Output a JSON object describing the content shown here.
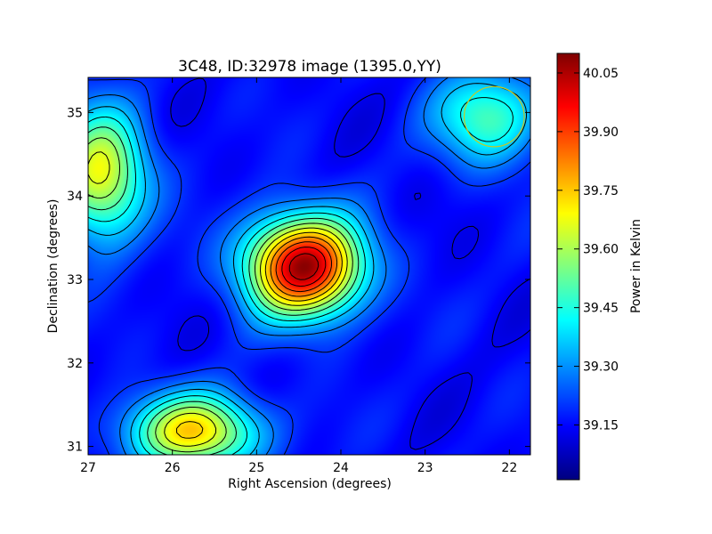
{
  "chart_data": {
    "type": "heatmap",
    "title": "3C48, ID:32978 image (1395.0,YY)",
    "xlabel": "Right Ascension (degrees)",
    "ylabel": "Declination (degrees)",
    "xlim": [
      27.0,
      21.75
    ],
    "ylim": [
      30.9,
      35.42
    ],
    "x_ticks": [
      27,
      26,
      25,
      24,
      23,
      22
    ],
    "y_ticks": [
      31,
      32,
      33,
      34,
      35
    ],
    "colorbar": {
      "label": "Power in Kelvin",
      "range": [
        39.01,
        40.1
      ],
      "ticks": [
        "39.15",
        "39.30",
        "39.45",
        "39.60",
        "39.75",
        "39.90",
        "40.05"
      ],
      "colormap": "jet"
    },
    "sources": [
      {
        "ra": 24.44,
        "dec": 33.16,
        "peak": 40.07,
        "sigma_ra": 0.48,
        "sigma_dec": 0.42
      },
      {
        "ra": 26.85,
        "dec": 34.25,
        "peak": 39.68,
        "sigma_ra": 0.38,
        "sigma_dec": 0.55
      },
      {
        "ra": 25.75,
        "dec": 31.18,
        "peak": 39.72,
        "sigma_ra": 0.55,
        "sigma_dec": 0.32
      },
      {
        "ra": 22.25,
        "dec": 34.95,
        "peak": 39.5,
        "sigma_ra": 0.45,
        "sigma_dec": 0.4
      }
    ],
    "beam_circle": {
      "ra": 22.18,
      "dec": 34.95,
      "radius_deg": 0.36,
      "color": "#c8c820"
    }
  },
  "colors": {
    "contour": "#000000",
    "frame": "#000000"
  }
}
